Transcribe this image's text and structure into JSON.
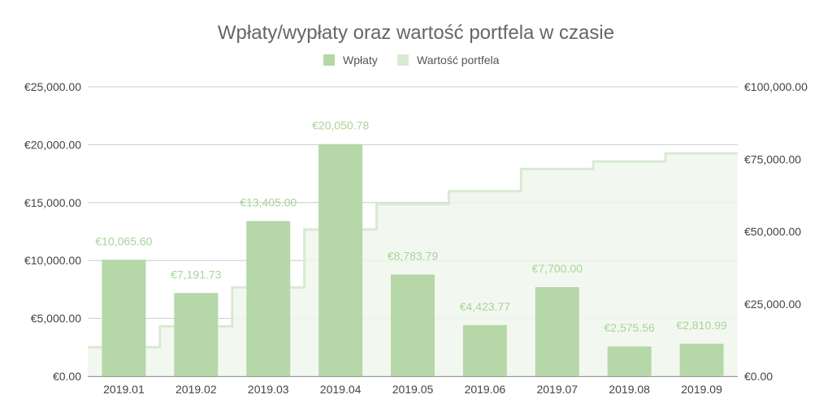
{
  "chart_data": {
    "type": "bar",
    "title": "Wpłaty/wypłaty oraz wartość portfela w czasie",
    "legend_position": "top",
    "categories": [
      "2019.01",
      "2019.02",
      "2019.03",
      "2019.04",
      "2019.05",
      "2019.06",
      "2019.07",
      "2019.08",
      "2019.09"
    ],
    "series": [
      {
        "name": "Wpłaty",
        "type": "bar",
        "axis": "left",
        "color": "#b6d7a8",
        "values": [
          10065.6,
          7191.73,
          13405.0,
          20050.78,
          8783.79,
          4423.77,
          7700.0,
          2575.56,
          2810.99
        ],
        "labels": [
          "€10,065.60",
          "€7,191.73",
          "€13,405.00",
          "€20,050.78",
          "€8,783.79",
          "€4,423.77",
          "€7,700.00",
          "€2,575.56",
          "€2,810.99"
        ]
      },
      {
        "name": "Wartość portfela",
        "type": "stepped-area",
        "axis": "right",
        "color": "#d9ead3",
        "values": [
          10065.6,
          17257.33,
          30662.33,
          50713.11,
          59496.9,
          63920.67,
          71620.67,
          74196.23,
          77007.22
        ]
      }
    ],
    "y_left": {
      "ylim": [
        0,
        25000
      ],
      "ticks": [
        0,
        5000,
        10000,
        15000,
        20000,
        25000
      ],
      "tick_labels": [
        "€0.00",
        "€5,000.00",
        "€10,000.00",
        "€15,000.00",
        "€20,000.00",
        "€25,000.00"
      ]
    },
    "y_right": {
      "ylim": [
        0,
        100000
      ],
      "ticks": [
        0,
        25000,
        50000,
        75000,
        100000
      ],
      "tick_labels": [
        "€0.00",
        "€25,000.00",
        "€50,000.00",
        "€75,000.00",
        "€100,000.00"
      ]
    },
    "grid": true
  }
}
